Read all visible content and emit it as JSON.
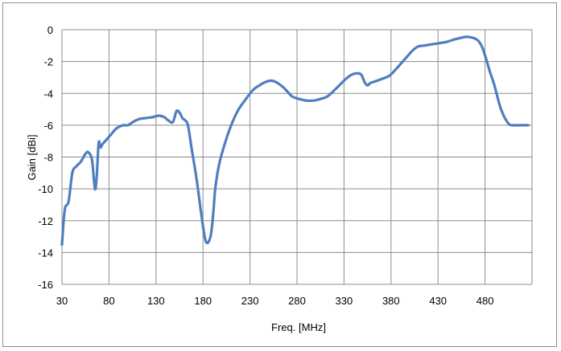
{
  "chart_data": {
    "type": "line",
    "title": "",
    "xlabel": "Freq. [MHz]",
    "ylabel": "Gain [dBi]",
    "xlim": [
      30,
      530
    ],
    "ylim": [
      -16,
      0
    ],
    "xticks": [
      30,
      80,
      130,
      180,
      230,
      280,
      330,
      380,
      430,
      480
    ],
    "yticks": [
      0,
      -2,
      -4,
      -6,
      -8,
      -10,
      -12,
      -14,
      -16
    ],
    "grid": true,
    "legend": "none",
    "series": [
      {
        "color": "#4f7ec0",
        "x": [
          30,
          33,
          37,
          41,
          45,
          50,
          55,
          58,
          62,
          65,
          67,
          69,
          71,
          73,
          76,
          79,
          82,
          88,
          95,
          100,
          107,
          113,
          119,
          126,
          133,
          139,
          143,
          148,
          152,
          156,
          158,
          161,
          164,
          168,
          173,
          178,
          183,
          188,
          191,
          193,
          197,
          203,
          210,
          217,
          225,
          233,
          240,
          246,
          252,
          258,
          265,
          270,
          275,
          282,
          290,
          298,
          305,
          312,
          318,
          325,
          330,
          336,
          342,
          348,
          352,
          355,
          358,
          363,
          370,
          378,
          385,
          391,
          397,
          403,
          409,
          415,
          420,
          425,
          431,
          440,
          448,
          455,
          460,
          465,
          469,
          473,
          477,
          481,
          485,
          490,
          497,
          505,
          512,
          519,
          526
        ],
        "y": [
          -13.5,
          -11.3,
          -10.8,
          -9.0,
          -8.6,
          -8.3,
          -7.8,
          -7.7,
          -8.2,
          -10.0,
          -9.2,
          -7.1,
          -7.4,
          -7.2,
          -7.0,
          -6.8,
          -6.6,
          -6.2,
          -6.0,
          -6.0,
          -5.75,
          -5.6,
          -5.55,
          -5.5,
          -5.4,
          -5.5,
          -5.7,
          -5.8,
          -5.1,
          -5.3,
          -5.55,
          -5.7,
          -6.0,
          -7.5,
          -9.3,
          -11.5,
          -13.3,
          -13.0,
          -11.5,
          -10.0,
          -8.5,
          -7.2,
          -6.0,
          -5.1,
          -4.4,
          -3.8,
          -3.5,
          -3.3,
          -3.2,
          -3.3,
          -3.6,
          -3.9,
          -4.2,
          -4.35,
          -4.45,
          -4.45,
          -4.35,
          -4.2,
          -3.9,
          -3.5,
          -3.2,
          -2.9,
          -2.75,
          -2.8,
          -3.3,
          -3.5,
          -3.35,
          -3.25,
          -3.1,
          -2.9,
          -2.5,
          -2.1,
          -1.7,
          -1.3,
          -1.05,
          -1.0,
          -0.95,
          -0.9,
          -0.85,
          -0.75,
          -0.6,
          -0.5,
          -0.45,
          -0.48,
          -0.55,
          -0.7,
          -1.1,
          -1.8,
          -2.6,
          -3.5,
          -5.0,
          -5.9,
          -6.0,
          -6.0,
          -6.0
        ]
      }
    ]
  }
}
